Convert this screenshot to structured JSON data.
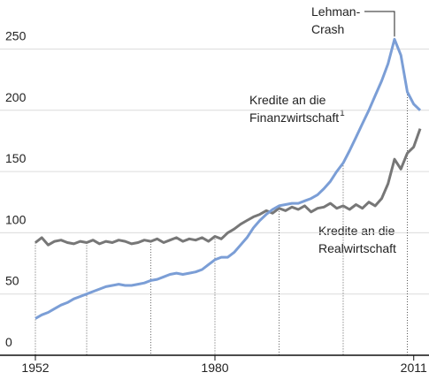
{
  "chart_data": {
    "type": "line",
    "x": [
      1952,
      1953,
      1954,
      1955,
      1956,
      1957,
      1958,
      1959,
      1960,
      1961,
      1962,
      1963,
      1964,
      1965,
      1966,
      1967,
      1968,
      1969,
      1970,
      1971,
      1972,
      1973,
      1974,
      1975,
      1976,
      1977,
      1978,
      1979,
      1980,
      1981,
      1982,
      1983,
      1984,
      1985,
      1986,
      1987,
      1988,
      1989,
      1990,
      1991,
      1992,
      1993,
      1994,
      1995,
      1996,
      1997,
      1998,
      1999,
      2000,
      2001,
      2002,
      2003,
      2004,
      2005,
      2006,
      2007,
      2008,
      2009,
      2010,
      2011,
      2012
    ],
    "series": [
      {
        "name": "Kredite an die Finanzwirtschaft",
        "color": "#7b9ed6",
        "values": [
          30,
          33,
          35,
          38,
          41,
          43,
          46,
          48,
          50,
          52,
          54,
          56,
          57,
          58,
          57,
          57,
          58,
          59,
          61,
          62,
          64,
          66,
          67,
          66,
          67,
          68,
          70,
          74,
          78,
          80,
          80,
          84,
          90,
          96,
          104,
          110,
          115,
          119,
          122,
          123,
          124,
          124,
          126,
          128,
          131,
          136,
          142,
          150,
          157,
          167,
          178,
          189,
          200,
          212,
          224,
          238,
          258,
          245,
          215,
          205,
          200
        ]
      },
      {
        "name": "Kredite an die Realwirtschaft",
        "color": "#777777",
        "values": [
          92,
          96,
          90,
          93,
          94,
          92,
          91,
          93,
          92,
          94,
          91,
          93,
          92,
          94,
          93,
          91,
          92,
          94,
          93,
          95,
          92,
          94,
          96,
          93,
          95,
          94,
          96,
          93,
          97,
          95,
          100,
          103,
          107,
          110,
          113,
          115,
          118,
          116,
          120,
          118,
          121,
          119,
          122,
          117,
          120,
          121,
          124,
          120,
          122,
          119,
          123,
          120,
          125,
          122,
          128,
          140,
          160,
          152,
          165,
          170,
          185
        ]
      }
    ],
    "ylim": [
      0,
      290
    ],
    "yticks": [
      0,
      50,
      100,
      150,
      200,
      250
    ],
    "xlim": [
      1950,
      2012.5
    ],
    "xticks": [
      1952,
      1980,
      2011
    ],
    "x_gridlines": [
      1952,
      1960,
      1970,
      1980,
      1990,
      2000,
      2010
    ],
    "grid": true,
    "annotations": {
      "lehman": [
        "Lehman-",
        "Crash"
      ],
      "finanz": [
        "Kredite an die",
        "Finanzwirtschaft"
      ],
      "footnote_mark": "1",
      "real": [
        "Kredite an die",
        "Realwirtschaft"
      ]
    }
  }
}
